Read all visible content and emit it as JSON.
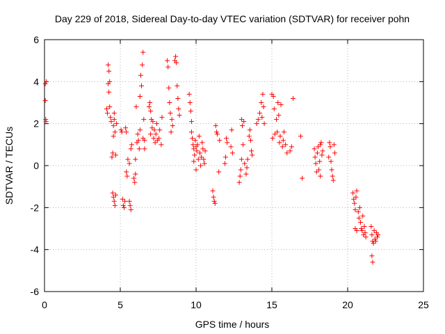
{
  "chart_data": {
    "type": "scatter",
    "title": "Day 229 of 2018, Sidereal Day-to-day VTEC variation (SDTVAR) for receiver pohn",
    "xlabel": "GPS time / hours",
    "ylabel": "SDTVAR / TECUs",
    "xlim": [
      0,
      25
    ],
    "ylim": [
      -6,
      6
    ],
    "xticks": [
      0,
      5,
      10,
      15,
      20,
      25
    ],
    "yticks": [
      -6,
      -4,
      -2,
      0,
      2,
      4,
      6
    ],
    "grid": true,
    "marker": "plus",
    "color": "#ff0000",
    "series": [
      {
        "name": "pohn",
        "points": [
          [
            0.05,
            3.9
          ],
          [
            0.05,
            3.1
          ],
          [
            0.08,
            2.2
          ],
          [
            0.1,
            2.1
          ],
          [
            0.12,
            4.0
          ],
          [
            4.1,
            2.7
          ],
          [
            4.15,
            2.5
          ],
          [
            4.2,
            4.8
          ],
          [
            4.2,
            3.9
          ],
          [
            4.25,
            4.5
          ],
          [
            4.25,
            3.5
          ],
          [
            4.3,
            4.0
          ],
          [
            4.3,
            2.8
          ],
          [
            4.35,
            2.3
          ],
          [
            4.4,
            2.1
          ],
          [
            4.45,
            0.4
          ],
          [
            4.5,
            0.6
          ],
          [
            4.55,
            1.4
          ],
          [
            4.55,
            1.9
          ],
          [
            4.6,
            2.2
          ],
          [
            4.6,
            2.5
          ],
          [
            4.65,
            1.6
          ],
          [
            4.7,
            0.5
          ],
          [
            4.75,
            2.0
          ],
          [
            4.5,
            -1.3
          ],
          [
            4.55,
            -1.5
          ],
          [
            4.6,
            -1.7
          ],
          [
            4.65,
            -1.9
          ],
          [
            4.7,
            -1.4
          ],
          [
            5.05,
            1.7
          ],
          [
            5.1,
            1.6
          ],
          [
            5.15,
            -1.6
          ],
          [
            5.2,
            -1.9
          ],
          [
            5.25,
            -2.0
          ],
          [
            5.3,
            -1.7
          ],
          [
            5.35,
            1.8
          ],
          [
            5.4,
            1.6
          ],
          [
            5.4,
            -0.3
          ],
          [
            5.45,
            -0.5
          ],
          [
            5.5,
            0.3
          ],
          [
            5.6,
            0.1
          ],
          [
            5.6,
            -1.7
          ],
          [
            5.65,
            -1.9
          ],
          [
            5.7,
            -2.1
          ],
          [
            5.7,
            0.8
          ],
          [
            5.75,
            1.0
          ],
          [
            5.9,
            -0.6
          ],
          [
            5.95,
            -0.8
          ],
          [
            6.0,
            -0.4
          ],
          [
            6.0,
            0.3
          ],
          [
            6.05,
            2.8
          ],
          [
            6.1,
            1.1
          ],
          [
            6.15,
            1.5
          ],
          [
            6.2,
            1.2
          ],
          [
            6.25,
            0.8
          ],
          [
            6.3,
            1.7
          ],
          [
            6.3,
            3.3
          ],
          [
            6.35,
            4.3
          ],
          [
            6.4,
            3.8
          ],
          [
            6.45,
            4.8
          ],
          [
            6.5,
            5.4
          ],
          [
            6.5,
            1.3
          ],
          [
            6.55,
            2.2
          ],
          [
            6.6,
            1.2
          ],
          [
            6.6,
            0.8
          ],
          [
            6.9,
            2.8
          ],
          [
            6.95,
            3.0
          ],
          [
            7.0,
            2.6
          ],
          [
            7.0,
            1.5
          ],
          [
            7.05,
            2.2
          ],
          [
            7.1,
            1.8
          ],
          [
            7.15,
            2.1
          ],
          [
            7.2,
            1.3
          ],
          [
            7.25,
            1.7
          ],
          [
            7.3,
            1.1
          ],
          [
            7.35,
            1.5
          ],
          [
            7.4,
            2.0
          ],
          [
            7.45,
            1.2
          ],
          [
            7.55,
            1.3
          ],
          [
            7.6,
            1.7
          ],
          [
            7.7,
            1.0
          ],
          [
            7.75,
            2.3
          ],
          [
            8.1,
            5.0
          ],
          [
            8.15,
            4.7
          ],
          [
            8.2,
            3.7
          ],
          [
            8.25,
            3.0
          ],
          [
            8.3,
            2.5
          ],
          [
            8.35,
            1.6
          ],
          [
            8.4,
            2.2
          ],
          [
            8.45,
            1.9
          ],
          [
            8.6,
            5.0
          ],
          [
            8.65,
            5.2
          ],
          [
            8.7,
            4.9
          ],
          [
            8.75,
            3.8
          ],
          [
            8.8,
            3.2
          ],
          [
            8.85,
            2.7
          ],
          [
            8.9,
            2.4
          ],
          [
            9.55,
            3.4
          ],
          [
            9.6,
            3.0
          ],
          [
            9.65,
            2.6
          ],
          [
            9.7,
            2.1
          ],
          [
            9.7,
            1.6
          ],
          [
            9.75,
            1.3
          ],
          [
            9.8,
            1.0
          ],
          [
            9.85,
            0.8
          ],
          [
            9.85,
            0.2
          ],
          [
            9.9,
            0.5
          ],
          [
            9.95,
            1.2
          ],
          [
            10.0,
            0.9
          ],
          [
            10.0,
            -0.2
          ],
          [
            10.05,
            0.7
          ],
          [
            10.1,
            1.0
          ],
          [
            10.15,
            0.3
          ],
          [
            10.2,
            1.4
          ],
          [
            10.25,
            0.6
          ],
          [
            10.3,
            0.0
          ],
          [
            10.35,
            0.4
          ],
          [
            10.4,
            1.1
          ],
          [
            10.45,
            0.8
          ],
          [
            10.5,
            0.3
          ],
          [
            10.55,
            0.1
          ],
          [
            10.6,
            0.7
          ],
          [
            11.1,
            -1.2
          ],
          [
            11.15,
            -1.5
          ],
          [
            11.2,
            -1.7
          ],
          [
            11.25,
            -1.8
          ],
          [
            11.3,
            1.9
          ],
          [
            11.35,
            1.6
          ],
          [
            11.4,
            1.5
          ],
          [
            11.5,
            -0.3
          ],
          [
            11.55,
            1.2
          ],
          [
            11.9,
            0.1
          ],
          [
            11.95,
            0.4
          ],
          [
            12.0,
            1.3
          ],
          [
            12.05,
            1.1
          ],
          [
            12.3,
            0.9
          ],
          [
            12.35,
            1.7
          ],
          [
            12.4,
            0.6
          ],
          [
            12.85,
            -0.8
          ],
          [
            12.9,
            -0.5
          ],
          [
            12.95,
            -0.2
          ],
          [
            13.0,
            2.2
          ],
          [
            13.0,
            0.3
          ],
          [
            13.05,
            1.9
          ],
          [
            13.1,
            1.0
          ],
          [
            13.15,
            2.1
          ],
          [
            13.2,
            0.1
          ],
          [
            13.3,
            -0.4
          ],
          [
            13.35,
            -0.1
          ],
          [
            13.4,
            0.3
          ],
          [
            13.5,
            1.4
          ],
          [
            13.55,
            1.7
          ],
          [
            13.6,
            1.2
          ],
          [
            13.65,
            0.7
          ],
          [
            13.7,
            0.5
          ],
          [
            14.0,
            2.0
          ],
          [
            14.1,
            2.2
          ],
          [
            14.2,
            2.5
          ],
          [
            14.3,
            3.0
          ],
          [
            14.35,
            2.3
          ],
          [
            14.4,
            3.4
          ],
          [
            14.45,
            2.8
          ],
          [
            14.5,
            2.0
          ],
          [
            15.0,
            3.4
          ],
          [
            15.05,
            1.3
          ],
          [
            15.1,
            3.3
          ],
          [
            15.15,
            2.7
          ],
          [
            15.2,
            1.5
          ],
          [
            15.3,
            2.2
          ],
          [
            15.35,
            1.6
          ],
          [
            15.4,
            3.0
          ],
          [
            15.45,
            2.4
          ],
          [
            15.5,
            1.1
          ],
          [
            15.55,
            1.4
          ],
          [
            15.6,
            2.9
          ],
          [
            15.7,
            0.9
          ],
          [
            15.75,
            1.2
          ],
          [
            15.8,
            1.6
          ],
          [
            15.9,
            1.0
          ],
          [
            16.0,
            0.6
          ],
          [
            16.2,
            0.7
          ],
          [
            16.3,
            0.9
          ],
          [
            16.4,
            3.2
          ],
          [
            16.9,
            1.4
          ],
          [
            17.0,
            -0.6
          ],
          [
            17.8,
            0.8
          ],
          [
            17.85,
            0.4
          ],
          [
            17.9,
            0.1
          ],
          [
            17.95,
            -0.3
          ],
          [
            18.0,
            0.6
          ],
          [
            18.05,
            0.9
          ],
          [
            18.1,
            -0.2
          ],
          [
            18.15,
            0.2
          ],
          [
            18.2,
            -0.5
          ],
          [
            18.2,
            1.0
          ],
          [
            18.25,
            1.1
          ],
          [
            18.3,
            0.5
          ],
          [
            18.35,
            0.7
          ],
          [
            18.75,
            0.4
          ],
          [
            18.8,
            1.1
          ],
          [
            18.85,
            0.9
          ],
          [
            18.9,
            0.2
          ],
          [
            18.95,
            -0.2
          ],
          [
            19.0,
            -0.5
          ],
          [
            19.05,
            -0.7
          ],
          [
            19.1,
            1.0
          ],
          [
            19.15,
            0.6
          ],
          [
            20.35,
            -1.3
          ],
          [
            20.4,
            -1.6
          ],
          [
            20.45,
            -1.8
          ],
          [
            20.5,
            -2.1
          ],
          [
            20.55,
            -1.5
          ],
          [
            20.6,
            -1.2
          ],
          [
            20.5,
            -3.0
          ],
          [
            20.6,
            -3.1
          ],
          [
            20.7,
            -2.2
          ],
          [
            20.75,
            -2.5
          ],
          [
            20.8,
            -2.0
          ],
          [
            20.85,
            -2.7
          ],
          [
            20.9,
            -3.0
          ],
          [
            20.95,
            -3.1
          ],
          [
            21.0,
            -2.4
          ],
          [
            21.05,
            -3.3
          ],
          [
            21.1,
            -2.9
          ],
          [
            21.15,
            -3.2
          ],
          [
            21.2,
            -3.4
          ],
          [
            21.55,
            -2.9
          ],
          [
            21.6,
            -3.3
          ],
          [
            21.65,
            -3.6
          ],
          [
            21.7,
            -3.7
          ],
          [
            21.6,
            -4.3
          ],
          [
            21.65,
            -4.6
          ],
          [
            21.75,
            -3.1
          ],
          [
            21.8,
            -3.5
          ],
          [
            21.85,
            -3.6
          ],
          [
            21.9,
            -3.2
          ],
          [
            21.95,
            -3.4
          ],
          [
            22.0,
            -3.3
          ]
        ]
      }
    ]
  }
}
